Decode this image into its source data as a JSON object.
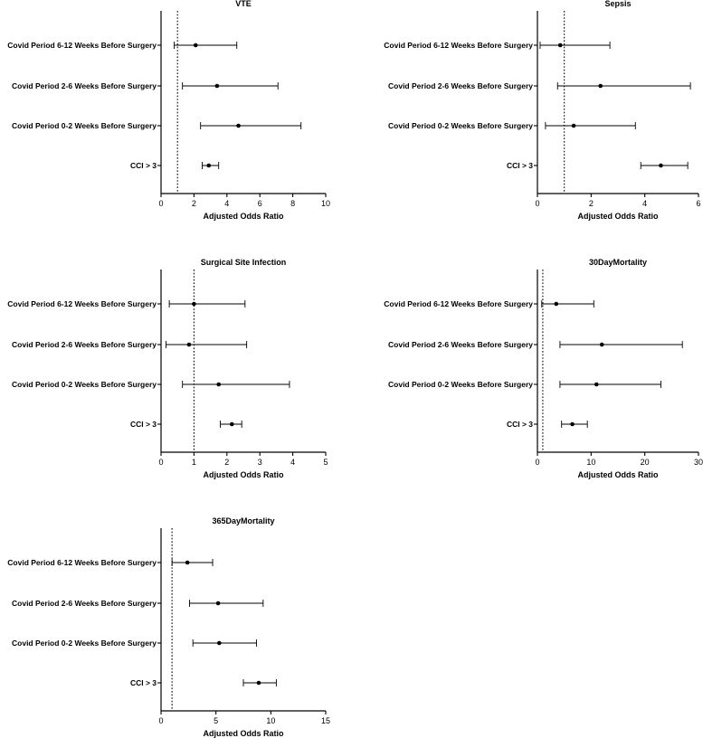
{
  "chart_data": [
    {
      "type": "forest",
      "title": "VTE",
      "xlabel": "Adjusted Odds Ratio",
      "xlim": [
        0,
        10
      ],
      "xticks": [
        "0",
        "2",
        "4",
        "6",
        "8",
        "10"
      ],
      "reference_line": 1,
      "categories": [
        "Covid Period 6-12 Weeks Before Surgery",
        "Covid Period 2-6 Weeks Before Surgery",
        "Covid Period 0-2 Weeks Before Surgery",
        "CCI > 3"
      ],
      "estimates": [
        2.1,
        3.4,
        4.7,
        2.9
      ],
      "lower": [
        0.8,
        1.3,
        2.4,
        2.5
      ],
      "upper": [
        4.6,
        7.1,
        8.5,
        3.5
      ]
    },
    {
      "type": "forest",
      "title": "Sepsis",
      "xlabel": "Adjusted Odds Ratio",
      "xlim": [
        0,
        6
      ],
      "xticks": [
        "0",
        "2",
        "4",
        "6"
      ],
      "reference_line": 1,
      "categories": [
        "Covid Period 6-12 Weeks Before Surgery",
        "Covid Period 2-6 Weeks Before Surgery",
        "Covid Period 0-2 Weeks Before Surgery",
        "CCI > 3"
      ],
      "estimates": [
        0.85,
        2.35,
        1.35,
        4.6
      ],
      "lower": [
        0.1,
        0.75,
        0.3,
        3.85
      ],
      "upper": [
        2.7,
        5.7,
        3.65,
        5.6
      ]
    },
    {
      "type": "forest",
      "title": "Surgical Site Infection",
      "xlabel": "Adjusted Odds Ratio",
      "xlim": [
        0,
        5
      ],
      "xticks": [
        "0",
        "1",
        "2",
        "3",
        "4",
        "5"
      ],
      "reference_line": 1,
      "categories": [
        "Covid Period 6-12 Weeks Before Surgery",
        "Covid Period 2-6 Weeks Before Surgery",
        "Covid Period 0-2 Weeks Before Surgery",
        "CCI > 3"
      ],
      "estimates": [
        1.0,
        0.85,
        1.75,
        2.15
      ],
      "lower": [
        0.25,
        0.15,
        0.65,
        1.8
      ],
      "upper": [
        2.55,
        2.6,
        3.9,
        2.45
      ]
    },
    {
      "type": "forest",
      "title": "30DayMortality",
      "xlabel": "Adjusted Odds Ratio",
      "xlim": [
        0,
        30
      ],
      "xticks": [
        "0",
        "10",
        "20",
        "30"
      ],
      "reference_line": 1,
      "categories": [
        "Covid Period 6-12 Weeks Before Surgery",
        "Covid Period 2-6 Weeks Before Surgery",
        "Covid Period 0-2 Weeks Before Surgery",
        "CCI > 3"
      ],
      "estimates": [
        3.5,
        12.0,
        11.0,
        6.5
      ],
      "lower": [
        0.8,
        4.2,
        4.2,
        4.5
      ],
      "upper": [
        10.5,
        27.0,
        23.0,
        9.3
      ]
    },
    {
      "type": "forest",
      "title": "365DayMortality",
      "xlabel": "Adjusted Odds Ratio",
      "xlim": [
        0,
        15
      ],
      "xticks": [
        "0",
        "5",
        "10",
        "15"
      ],
      "reference_line": 1,
      "categories": [
        "Covid Period 6-12 Weeks Before Surgery",
        "Covid Period 2-6 Weeks Before Surgery",
        "Covid Period 0-2 Weeks Before Surgery",
        "CCI > 3"
      ],
      "estimates": [
        2.4,
        5.2,
        5.3,
        8.9
      ],
      "lower": [
        1.0,
        2.6,
        2.9,
        7.5
      ],
      "upper": [
        4.7,
        9.3,
        8.7,
        10.5
      ]
    }
  ]
}
